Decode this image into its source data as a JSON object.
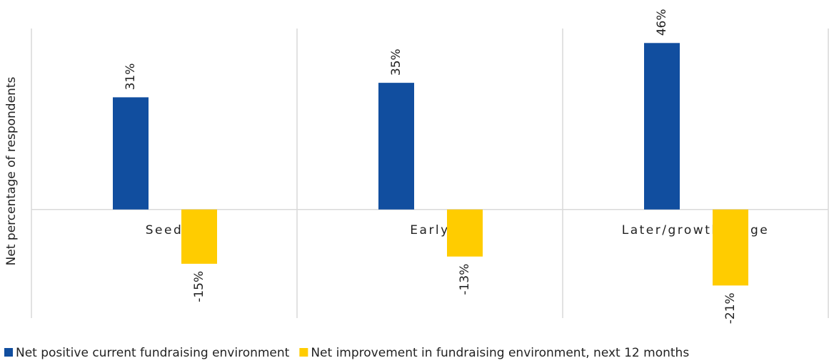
{
  "chart_data": {
    "type": "bar",
    "y_label": "Net percentage of respondents",
    "categories": [
      "Seed",
      "Early",
      "Later/growth stage"
    ],
    "series": [
      {
        "name": "Net positive current fundraising environment",
        "color": "#114e9f",
        "values": [
          31,
          35,
          46
        ],
        "value_labels": [
          "31%",
          "35%",
          "46%"
        ]
      },
      {
        "name": "Net improvement in fundraising environment, next 12 months",
        "color": "#ffcc00",
        "values": [
          -15,
          -13,
          -21
        ],
        "value_labels": [
          "-15%",
          "-13%",
          "-21%"
        ]
      }
    ],
    "ylim": [
      -30,
      50
    ]
  }
}
